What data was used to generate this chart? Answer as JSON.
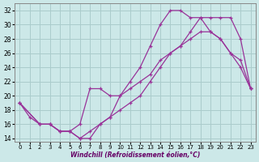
{
  "xlabel": "Windchill (Refroidissement éolien,°C)",
  "bg_color": "#cce8e8",
  "grid_color": "#aacccc",
  "line_color": "#993399",
  "xlim_min": -0.5,
  "xlim_max": 23.5,
  "ylim_min": 13.5,
  "ylim_max": 33.0,
  "xticks": [
    0,
    1,
    2,
    3,
    4,
    5,
    6,
    7,
    8,
    9,
    10,
    11,
    12,
    13,
    14,
    15,
    16,
    17,
    18,
    19,
    20,
    21,
    22,
    23
  ],
  "yticks": [
    14,
    16,
    18,
    20,
    22,
    24,
    26,
    28,
    30,
    32
  ],
  "line1_x": [
    0,
    1,
    2,
    3,
    4,
    5,
    6,
    7,
    8,
    9,
    10,
    11,
    12,
    13,
    14,
    15,
    16,
    17,
    18,
    19,
    20,
    21,
    22,
    23
  ],
  "line1_y": [
    19,
    17,
    16,
    16,
    15,
    15,
    14,
    14,
    16,
    17,
    20,
    22,
    24,
    27,
    30,
    32,
    32,
    31,
    31,
    29,
    28,
    26,
    25,
    21
  ],
  "line2_x": [
    0,
    2,
    3,
    4,
    5,
    6,
    7,
    8,
    9,
    10,
    11,
    12,
    13,
    14,
    15,
    16,
    17,
    18,
    19,
    20,
    21,
    22,
    23
  ],
  "line2_y": [
    19,
    16,
    16,
    15,
    15,
    16,
    21,
    21,
    20,
    20,
    21,
    22,
    23,
    25,
    26,
    27,
    28,
    29,
    29,
    28,
    26,
    24,
    21
  ],
  "line3_x": [
    0,
    2,
    3,
    4,
    5,
    6,
    7,
    8,
    9,
    10,
    11,
    12,
    13,
    14,
    15,
    16,
    17,
    18,
    19,
    20,
    21,
    22,
    23
  ],
  "line3_y": [
    19,
    16,
    16,
    15,
    15,
    14,
    15,
    16,
    17,
    18,
    19,
    20,
    22,
    24,
    26,
    27,
    29,
    31,
    31,
    31,
    31,
    28,
    21
  ]
}
